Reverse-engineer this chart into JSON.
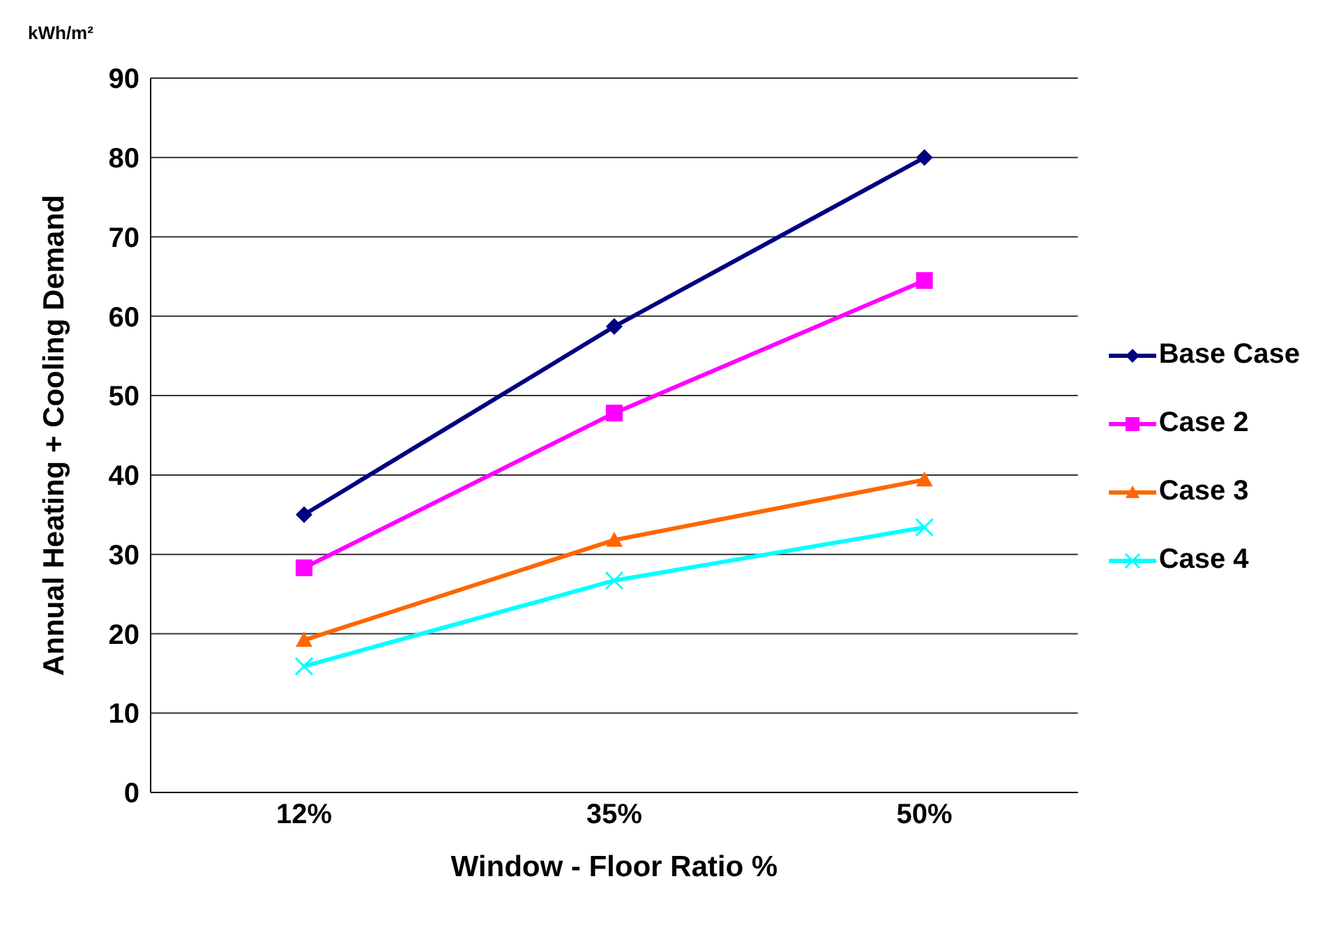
{
  "chart_data": {
    "type": "line",
    "xlabel": "Window - Floor Ratio %",
    "ylabel": "Annual Heating + Cooling Demand",
    "annotations": [
      "kWh/m²"
    ],
    "categories": [
      "12%",
      "35%",
      "50%"
    ],
    "ylim": [
      0,
      90
    ],
    "yticks": [
      0,
      10,
      20,
      30,
      40,
      50,
      60,
      70,
      80,
      90
    ],
    "grid": "y",
    "legend": "right",
    "series": [
      {
        "name": "Base Case",
        "color": "#000080",
        "marker": "diamond",
        "values": [
          35,
          58.7,
          80
        ]
      },
      {
        "name": "Case 2",
        "color": "#ff00ff",
        "marker": "square",
        "values": [
          28.3,
          47.8,
          64.5
        ]
      },
      {
        "name": "Case 3",
        "color": "#ff6600",
        "marker": "triangle",
        "values": [
          19.2,
          31.8,
          39.4
        ]
      },
      {
        "name": "Case 4",
        "color": "#00ffff",
        "marker": "cross",
        "values": [
          15.9,
          26.7,
          33.4
        ]
      }
    ]
  }
}
